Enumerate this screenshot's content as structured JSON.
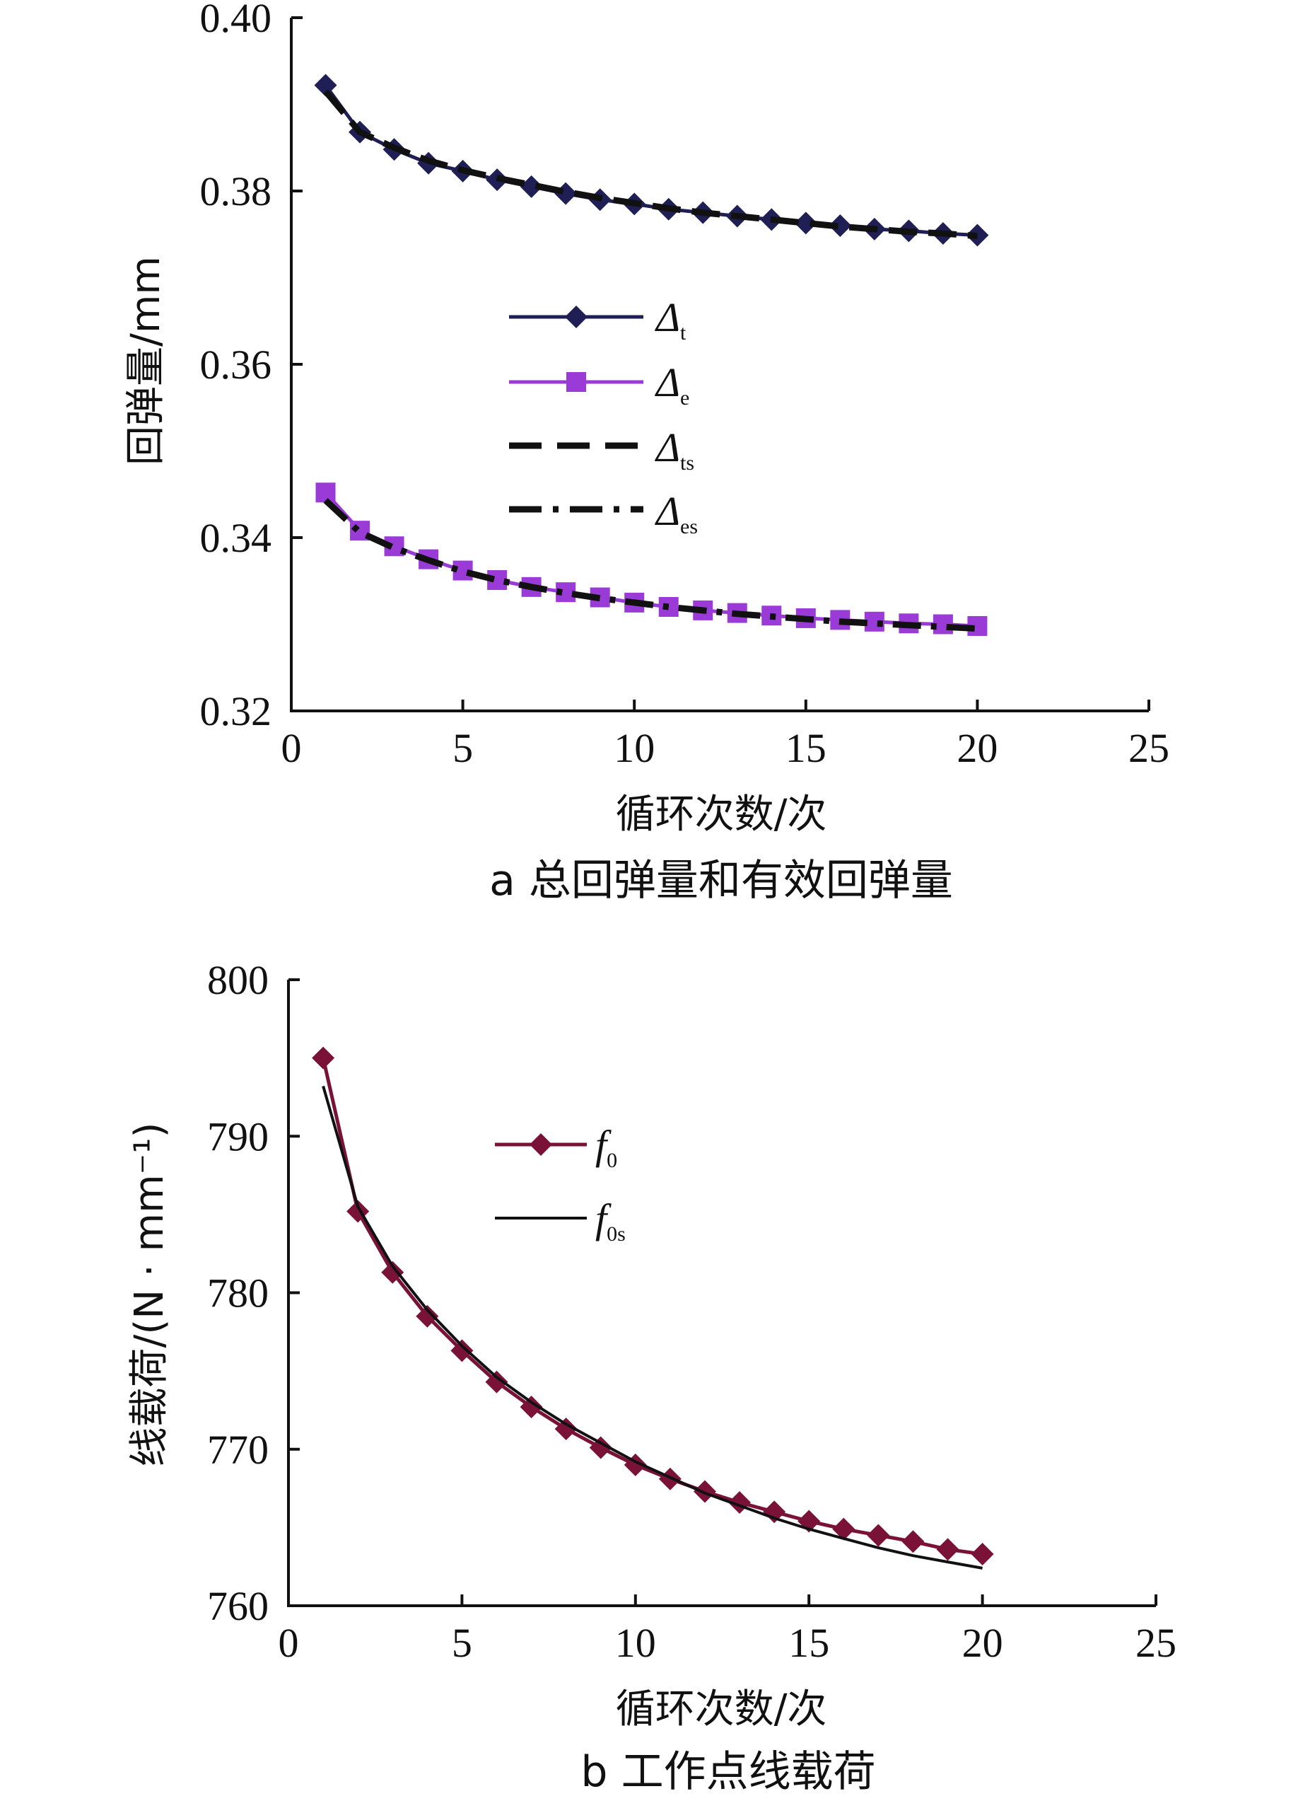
{
  "chart_data": [
    {
      "type": "line",
      "caption": "a 总回弹量和有效回弹量",
      "xlabel": "循环次数/次",
      "ylabel": "回弹量/mm",
      "xlim": [
        0,
        25
      ],
      "ylim": [
        0.32,
        0.4
      ],
      "xticks": [
        "0",
        "5",
        "10",
        "15",
        "20",
        "25"
      ],
      "yticks": [
        "0.32",
        "0.34",
        "0.36",
        "0.38",
        "0.40"
      ],
      "legend_position": "center-left",
      "x": [
        1,
        2,
        3,
        4,
        5,
        6,
        7,
        8,
        9,
        10,
        11,
        12,
        13,
        14,
        15,
        16,
        17,
        18,
        19,
        20
      ],
      "series": [
        {
          "name": "Δt",
          "label_main": "Δ",
          "label_sub": "t",
          "color": "#1f1f55",
          "marker": "diamond",
          "values": [
            0.3922,
            0.3868,
            0.3848,
            0.3832,
            0.3823,
            0.3813,
            0.3805,
            0.3797,
            0.379,
            0.3785,
            0.3779,
            0.3775,
            0.3771,
            0.3767,
            0.3763,
            0.376,
            0.3756,
            0.3754,
            0.3751,
            0.3749
          ]
        },
        {
          "name": "Δe",
          "label_main": "Δ",
          "label_sub": "e",
          "color": "#9a3bd8",
          "marker": "square",
          "values": [
            0.3452,
            0.3408,
            0.339,
            0.3375,
            0.3362,
            0.3351,
            0.3343,
            0.3337,
            0.3331,
            0.3325,
            0.332,
            0.3316,
            0.3313,
            0.331,
            0.3307,
            0.3305,
            0.3303,
            0.3301,
            0.33,
            0.3298
          ]
        },
        {
          "name": "Δts",
          "label_main": "Δ",
          "label_sub": "ts",
          "color": "#111111",
          "style": "dashed",
          "values": [
            0.3915,
            0.3868,
            0.385,
            0.3835,
            0.3824,
            0.3815,
            0.3807,
            0.3799,
            0.3792,
            0.3786,
            0.378,
            0.3775,
            0.3771,
            0.3767,
            0.3763,
            0.3759,
            0.3756,
            0.3753,
            0.3751,
            0.3748
          ]
        },
        {
          "name": "Δes",
          "label_main": "Δ",
          "label_sub": "es",
          "color": "#111111",
          "style": "dashdot",
          "values": [
            0.3443,
            0.3406,
            0.3388,
            0.3374,
            0.3361,
            0.3351,
            0.3343,
            0.3336,
            0.333,
            0.3325,
            0.332,
            0.3316,
            0.3312,
            0.3309,
            0.3306,
            0.3303,
            0.3301,
            0.3299,
            0.3297,
            0.3295
          ]
        }
      ]
    },
    {
      "type": "line",
      "caption": "b 工作点线载荷",
      "xlabel": "循环次数/次",
      "ylabel": "线载荷/(N · mm⁻¹)",
      "xlim": [
        0,
        25
      ],
      "ylim": [
        760,
        800
      ],
      "xticks": [
        "0",
        "5",
        "10",
        "15",
        "20",
        "25"
      ],
      "yticks": [
        "760",
        "770",
        "780",
        "790",
        "800"
      ],
      "legend_position": "center-left",
      "x": [
        1,
        2,
        3,
        4,
        5,
        6,
        7,
        8,
        9,
        10,
        11,
        12,
        13,
        14,
        15,
        16,
        17,
        18,
        19,
        20
      ],
      "series": [
        {
          "name": "f0",
          "label_main": "f",
          "label_sub": "0",
          "color": "#7a1238",
          "marker": "diamond",
          "values": [
            795.0,
            785.2,
            781.3,
            778.5,
            776.3,
            774.3,
            772.7,
            771.3,
            770.1,
            769.0,
            768.1,
            767.3,
            766.6,
            766.0,
            765.4,
            764.9,
            764.5,
            764.1,
            763.6,
            763.3
          ]
        },
        {
          "name": "f0s",
          "label_main": "f",
          "label_sub": "0s",
          "color": "#111111",
          "style": "solid",
          "values": [
            793.2,
            785.5,
            781.7,
            778.9,
            776.6,
            774.6,
            773.0,
            771.6,
            770.4,
            769.2,
            768.2,
            767.2,
            766.4,
            765.6,
            764.9,
            764.3,
            763.7,
            763.2,
            762.8,
            762.4
          ]
        }
      ]
    }
  ]
}
